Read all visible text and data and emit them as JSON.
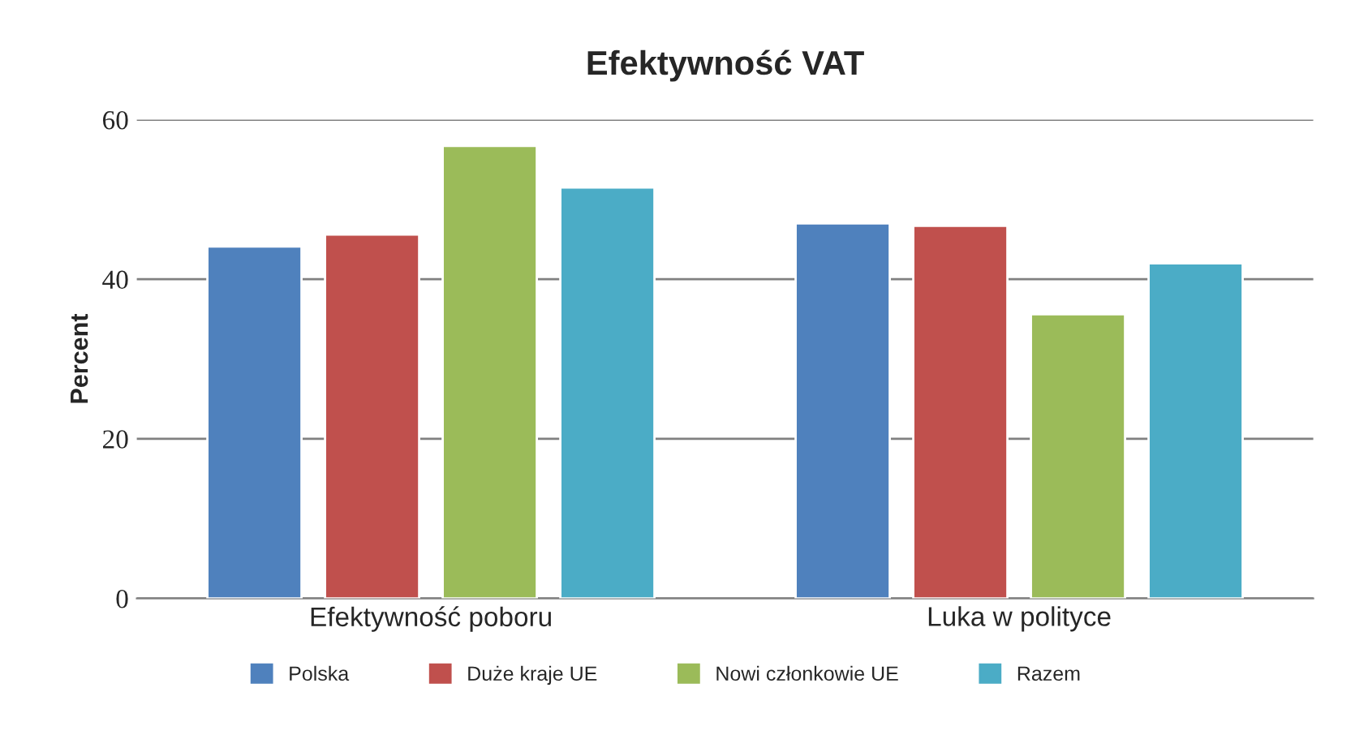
{
  "chart_data": {
    "type": "bar",
    "title": "Efektywność VAT",
    "ylabel": "Percent",
    "categories": [
      "Efektywność poboru",
      "Luka w polityce"
    ],
    "series": [
      {
        "name": "Polska",
        "color": "#4f81bd",
        "values": [
          44.1,
          47.0
        ]
      },
      {
        "name": "Duże kraje UE",
        "color": "#c0504d",
        "values": [
          45.6,
          46.7
        ]
      },
      {
        "name": "Nowi członkowie UE",
        "color": "#9bbb59",
        "values": [
          56.7,
          35.6
        ]
      },
      {
        "name": "Razem",
        "color": "#4bacc6",
        "values": [
          51.5,
          42.0
        ]
      }
    ],
    "ylim": [
      0,
      60
    ],
    "yticks": [
      0,
      20,
      40,
      60
    ],
    "grid": "y",
    "legend": "bottom"
  }
}
